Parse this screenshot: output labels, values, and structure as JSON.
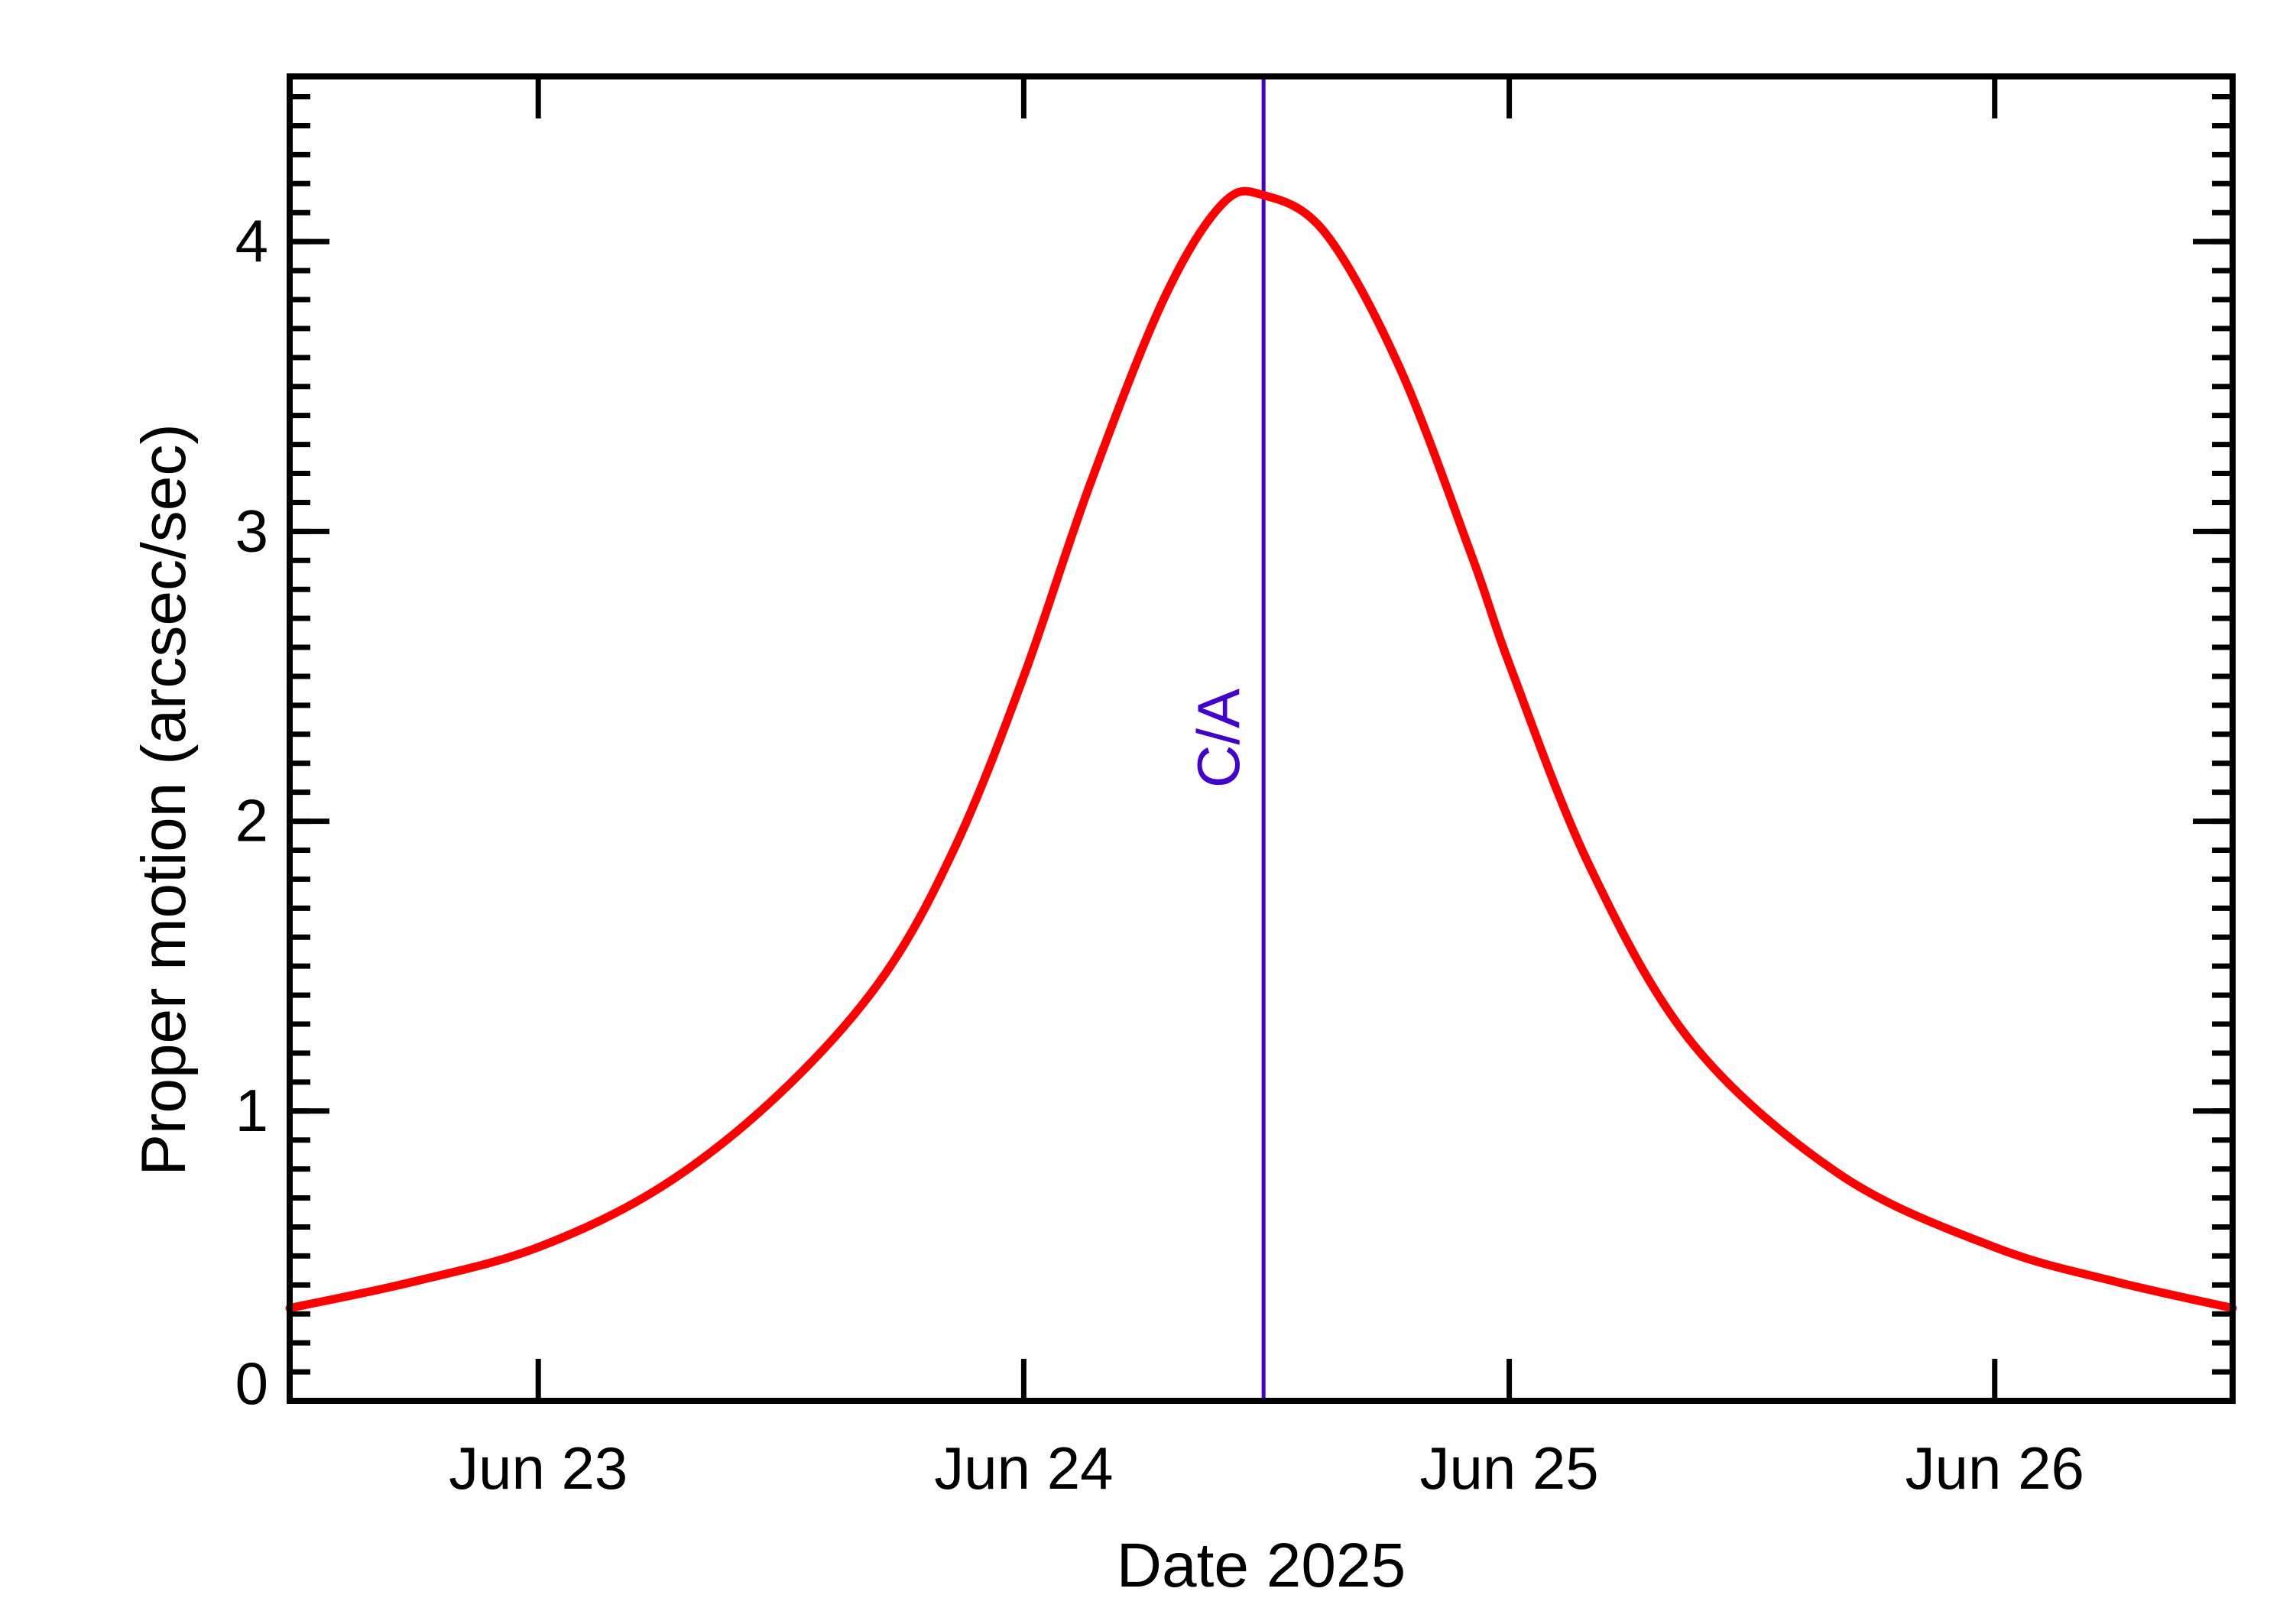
{
  "chart_data": {
    "type": "line",
    "title": "",
    "xlabel": "Date 2025",
    "ylabel": "Proper motion (arcsec/sec)",
    "x_tick_labels": [
      "Jun 23",
      "Jun 24",
      "Jun 25",
      "Jun 26"
    ],
    "x_tick_days": [
      1,
      2,
      3,
      4
    ],
    "x_units": "days since Jun 22 00:00 2025",
    "xlim": [
      0.488,
      4.49
    ],
    "y_tick_labels": [
      "0",
      "1",
      "2",
      "3",
      "4"
    ],
    "y_ticks": [
      0,
      1,
      2,
      3,
      4
    ],
    "y_minor_step": 0.1,
    "ylim": [
      0,
      4.57
    ],
    "grid": false,
    "legend": null,
    "annotations": [
      {
        "type": "vline",
        "x": 2.494,
        "label": "C/A",
        "color": "#4400CC"
      }
    ],
    "series": [
      {
        "name": "Proper motion",
        "color": "#FF0000",
        "x": [
          0.488,
          0.74,
          1.0,
          1.255,
          1.497,
          1.709,
          1.861,
          2.0,
          2.136,
          2.288,
          2.409,
          2.494,
          2.621,
          2.773,
          2.924,
          3.003,
          3.167,
          3.379,
          3.682,
          4.0,
          4.252,
          4.49
        ],
        "y": [
          0.32,
          0.41,
          0.53,
          0.74,
          1.06,
          1.46,
          1.92,
          2.5,
          3.16,
          3.8,
          4.13,
          4.16,
          4.03,
          3.57,
          2.91,
          2.53,
          1.84,
          1.23,
          0.78,
          0.53,
          0.41,
          0.32
        ]
      }
    ]
  }
}
